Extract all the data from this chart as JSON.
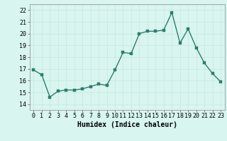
{
  "x": [
    0,
    1,
    2,
    3,
    4,
    5,
    6,
    7,
    8,
    9,
    10,
    11,
    12,
    13,
    14,
    15,
    16,
    17,
    18,
    19,
    20,
    21,
    22,
    23
  ],
  "y": [
    16.9,
    16.5,
    14.6,
    15.1,
    15.2,
    15.2,
    15.3,
    15.5,
    15.7,
    15.6,
    16.9,
    18.4,
    18.3,
    20.0,
    20.2,
    20.2,
    20.3,
    21.8,
    19.2,
    20.4,
    18.8,
    17.5,
    16.6,
    15.9
  ],
  "xlabel": "Humidex (Indice chaleur)",
  "ylim": [
    13.5,
    22.5
  ],
  "xlim": [
    -0.5,
    23.5
  ],
  "yticks": [
    14,
    15,
    16,
    17,
    18,
    19,
    20,
    21,
    22
  ],
  "xticks": [
    0,
    1,
    2,
    3,
    4,
    5,
    6,
    7,
    8,
    9,
    10,
    11,
    12,
    13,
    14,
    15,
    16,
    17,
    18,
    19,
    20,
    21,
    22,
    23
  ],
  "line_color": "#2e7d6e",
  "marker_color": "#2e7d6e",
  "bg_color": "#d8f5f0",
  "grid_color": "#c8e8e0",
  "xlabel_fontsize": 7,
  "tick_fontsize": 6,
  "marker_size": 2.5,
  "line_width": 1.0
}
